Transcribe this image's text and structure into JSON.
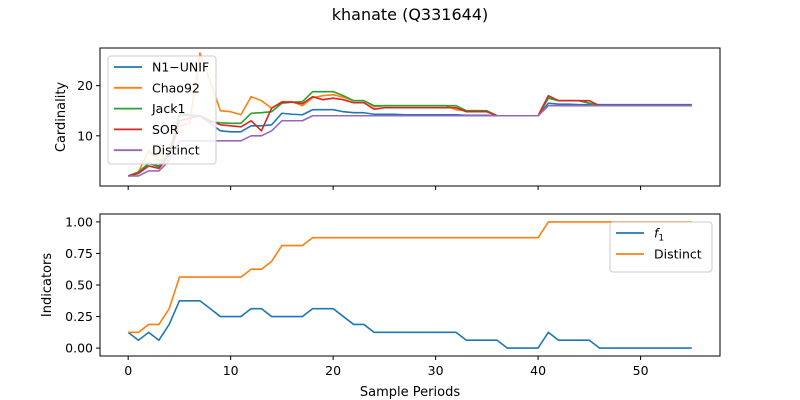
{
  "figure_title": "khanate (Q331644)",
  "chart_data": [
    {
      "type": "line",
      "ylabel": "Cardinality",
      "xlabel": "",
      "xlim": [
        -2.75,
        57.75
      ],
      "ylim": [
        0,
        27.5
      ],
      "yticks": [
        10,
        20
      ],
      "xticks": [
        0,
        10,
        20,
        30,
        40,
        50
      ],
      "show_x_tick_labels": false,
      "legend_position": "upper left",
      "series": [
        {
          "name": "N1−UNIF",
          "color": "#1f77b4",
          "values": [
            2,
            2.6,
            4.5,
            4,
            6.5,
            14.5,
            14.2,
            14,
            12.5,
            11,
            10.8,
            10.8,
            12,
            12,
            12.2,
            14.5,
            14.3,
            14.2,
            15.2,
            15.2,
            15.2,
            14.8,
            14.6,
            14.6,
            14.3,
            14.3,
            14.3,
            14.2,
            14.2,
            14.2,
            14.2,
            14.2,
            14.2,
            14.1,
            14.1,
            14.1,
            14,
            14,
            14,
            14,
            14,
            16.5,
            16.3,
            16.3,
            16.2,
            16.2,
            16.2,
            16.2,
            16.2,
            16.2,
            16.2,
            16.2,
            16.2,
            16.2,
            16.2,
            16.2
          ]
        },
        {
          "name": "Chao92",
          "color": "#ff7f0e",
          "values": [
            2,
            2.8,
            7,
            5,
            6,
            12,
            12.5,
            26.5,
            21,
            15,
            14.8,
            14.2,
            17.8,
            17,
            15.5,
            16.8,
            16.8,
            16,
            17.6,
            18,
            18.2,
            17.7,
            17,
            17,
            15.8,
            16,
            16,
            16,
            16,
            16,
            16,
            16,
            15.2,
            15,
            15,
            14.8,
            14,
            14,
            14,
            14,
            14,
            17.8,
            17,
            17,
            17,
            16.5,
            16,
            16,
            16,
            16,
            16,
            16,
            16,
            16,
            16,
            16
          ]
        },
        {
          "name": "Jack1",
          "color": "#2ca02c",
          "values": [
            2,
            2.8,
            4.5,
            3.8,
            6.5,
            14.2,
            14,
            14,
            12.8,
            12.6,
            12.5,
            12.5,
            14.5,
            14.6,
            14.8,
            16.5,
            16.7,
            16.8,
            18.8,
            18.8,
            18.8,
            18,
            17,
            17,
            16,
            16,
            16,
            16,
            16,
            16,
            16,
            16,
            16,
            15,
            15,
            15,
            14,
            14,
            14,
            14,
            14,
            17.5,
            17,
            17,
            17,
            16.5,
            16,
            16,
            16,
            16,
            16,
            16,
            16,
            16,
            16,
            16
          ]
        },
        {
          "name": "SOR",
          "color": "#d62728",
          "values": [
            2,
            2.5,
            4,
            3.5,
            6,
            13,
            13.5,
            14,
            13,
            12.2,
            12,
            11.8,
            13,
            11,
            15.5,
            16.7,
            16.7,
            16.4,
            17.8,
            17.2,
            17.5,
            17.2,
            16.6,
            16.6,
            15.3,
            15.6,
            15.6,
            15.6,
            15.6,
            15.6,
            15.6,
            15.6,
            15.6,
            14.8,
            14.8,
            14.8,
            14,
            14,
            14,
            14,
            14,
            18,
            17,
            17,
            17,
            17,
            16,
            16,
            16,
            16,
            16,
            16,
            16,
            16,
            16,
            16
          ]
        },
        {
          "name": "Distinct",
          "color": "#9467bd",
          "values": [
            2,
            2,
            3,
            3,
            5,
            9,
            9,
            9,
            9,
            9,
            9,
            9,
            10,
            10,
            11,
            13,
            13,
            13,
            14,
            14,
            14,
            14,
            14,
            14,
            14,
            14,
            14,
            14,
            14,
            14,
            14,
            14,
            14,
            14,
            14,
            14,
            14,
            14,
            14,
            14,
            14,
            16,
            16,
            16,
            16,
            16,
            16,
            16,
            16,
            16,
            16,
            16,
            16,
            16,
            16,
            16
          ]
        }
      ]
    },
    {
      "type": "line",
      "ylabel": "Indicators",
      "xlabel": "Sample Periods",
      "xlim": [
        -2.75,
        57.75
      ],
      "ylim": [
        -0.0625,
        1.0625
      ],
      "yticks": [
        0.0,
        0.25,
        0.5,
        0.75,
        1.0
      ],
      "ytick_labels": [
        "0.00",
        "0.25",
        "0.50",
        "0.75",
        "1.00"
      ],
      "xticks": [
        0,
        10,
        20,
        30,
        40,
        50
      ],
      "xtick_labels": [
        "0",
        "10",
        "20",
        "30",
        "40",
        "50"
      ],
      "show_x_tick_labels": true,
      "legend_position": "upper right",
      "series": [
        {
          "name": "f1",
          "color": "#1f77b4",
          "values": [
            0.125,
            0.0625,
            0.125,
            0.0625,
            0.1875,
            0.375,
            0.375,
            0.375,
            0.3125,
            0.25,
            0.25,
            0.25,
            0.3125,
            0.3125,
            0.25,
            0.25,
            0.25,
            0.25,
            0.3125,
            0.3125,
            0.3125,
            0.25,
            0.1875,
            0.1875,
            0.125,
            0.125,
            0.125,
            0.125,
            0.125,
            0.125,
            0.125,
            0.125,
            0.125,
            0.0625,
            0.0625,
            0.0625,
            0.0625,
            0,
            0,
            0,
            0,
            0.125,
            0.0625,
            0.0625,
            0.0625,
            0.0625,
            0,
            0,
            0,
            0,
            0,
            0,
            0,
            0,
            0,
            0
          ]
        },
        {
          "name": "Distinct",
          "color": "#ff7f0e",
          "values": [
            0.125,
            0.125,
            0.1875,
            0.1875,
            0.3125,
            0.5625,
            0.5625,
            0.5625,
            0.5625,
            0.5625,
            0.5625,
            0.5625,
            0.625,
            0.625,
            0.6875,
            0.8125,
            0.8125,
            0.8125,
            0.875,
            0.875,
            0.875,
            0.875,
            0.875,
            0.875,
            0.875,
            0.875,
            0.875,
            0.875,
            0.875,
            0.875,
            0.875,
            0.875,
            0.875,
            0.875,
            0.875,
            0.875,
            0.875,
            0.875,
            0.875,
            0.875,
            0.875,
            1,
            1,
            1,
            1,
            1,
            1,
            1,
            1,
            1,
            1,
            1,
            1,
            1,
            1,
            1
          ]
        }
      ]
    }
  ]
}
